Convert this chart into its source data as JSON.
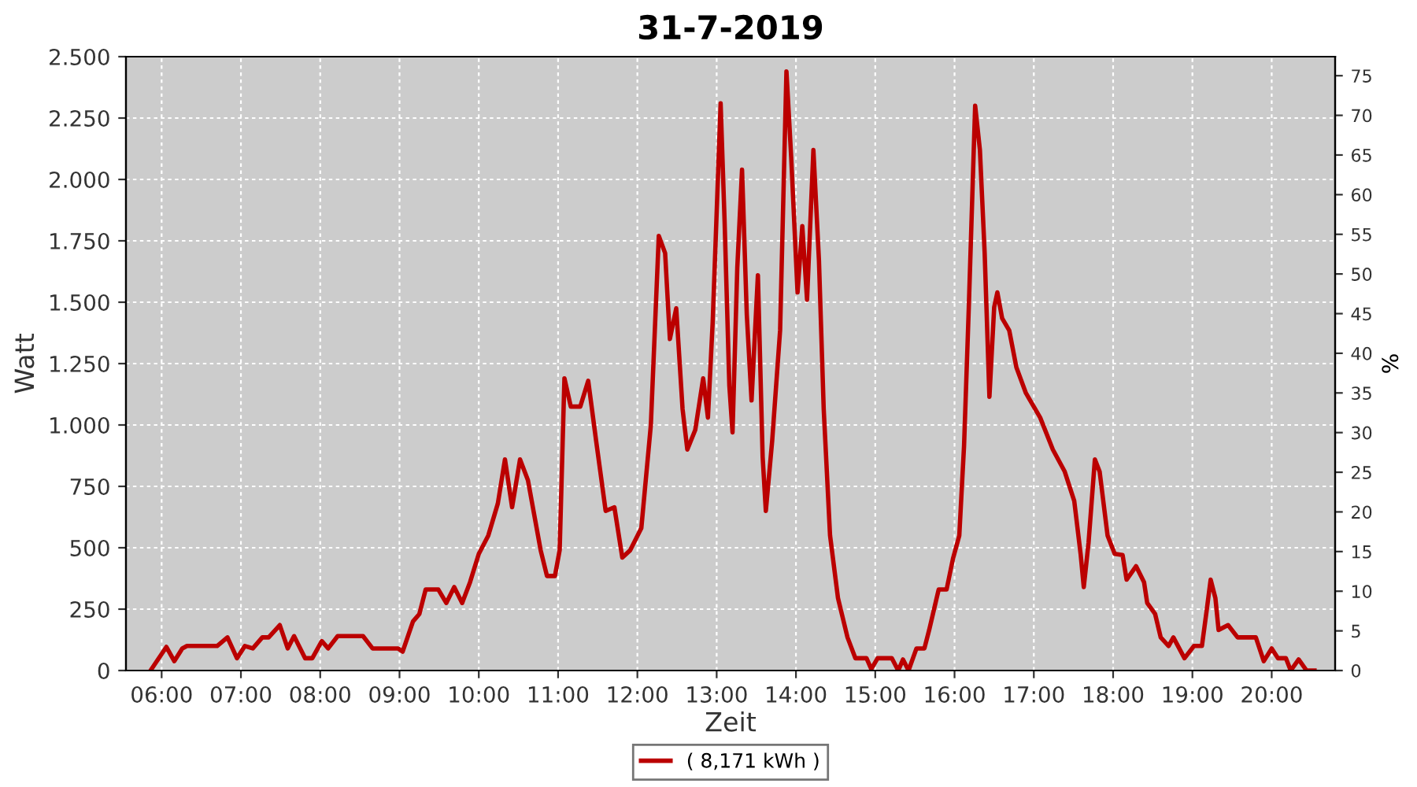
{
  "chart_data": {
    "type": "line",
    "title": "31-7-2019",
    "xlabel": "Zeit",
    "ylabel": "Watt",
    "y2label": "%",
    "x": [
      5.86,
      6.06,
      6.16,
      6.26,
      6.32,
      6.7,
      6.83,
      6.95,
      7.05,
      7.15,
      7.27,
      7.35,
      7.49,
      7.59,
      7.67,
      7.81,
      7.9,
      8.02,
      8.1,
      8.22,
      8.54,
      8.66,
      8.98,
      9.04,
      9.17,
      9.25,
      9.33,
      9.49,
      9.59,
      9.69,
      9.79,
      9.89,
      10.0,
      10.12,
      10.24,
      10.33,
      10.42,
      10.52,
      10.62,
      10.78,
      10.86,
      10.96,
      11.02,
      11.08,
      11.16,
      11.28,
      11.38,
      11.48,
      11.6,
      11.71,
      11.81,
      11.91,
      12.05,
      12.17,
      12.27,
      12.35,
      12.41,
      12.49,
      12.57,
      12.63,
      12.73,
      12.83,
      12.89,
      12.95,
      13.05,
      13.1,
      13.16,
      13.2,
      13.26,
      13.32,
      13.38,
      13.44,
      13.52,
      13.58,
      13.62,
      13.7,
      13.8,
      13.88,
      13.94,
      14.02,
      14.08,
      14.14,
      14.22,
      14.29,
      14.35,
      14.43,
      14.53,
      14.65,
      14.75,
      14.89,
      14.95,
      15.03,
      15.21,
      15.29,
      15.35,
      15.42,
      15.52,
      15.62,
      15.68,
      15.8,
      15.9,
      15.98,
      16.06,
      16.12,
      16.18,
      16.26,
      16.32,
      16.38,
      16.44,
      16.5,
      16.54,
      16.6,
      16.69,
      16.78,
      16.9,
      17.08,
      17.24,
      17.39,
      17.51,
      17.59,
      17.63,
      17.69,
      17.77,
      17.83,
      17.93,
      18.02,
      18.12,
      18.17,
      18.29,
      18.39,
      18.43,
      18.53,
      18.6,
      18.7,
      18.76,
      18.9,
      19.02,
      19.12,
      19.18,
      19.23,
      19.29,
      19.33,
      19.45,
      19.57,
      19.8,
      19.9,
      20.0,
      20.08,
      20.18,
      20.24,
      20.34,
      20.44,
      20.54
    ],
    "series": [
      {
        "name": "( 8,171 kWh )",
        "color": "#bb0000",
        "values": [
          0,
          96,
          38,
          90,
          100,
          100,
          135,
          50,
          100,
          90,
          135,
          135,
          185,
          90,
          140,
          50,
          50,
          120,
          90,
          140,
          140,
          90,
          90,
          77,
          200,
          230,
          330,
          330,
          275,
          340,
          275,
          360,
          475,
          550,
          680,
          860,
          665,
          860,
          775,
          490,
          385,
          385,
          490,
          1190,
          1075,
          1075,
          1180,
          935,
          650,
          665,
          460,
          490,
          580,
          1000,
          1770,
          1700,
          1350,
          1475,
          1065,
          900,
          980,
          1190,
          1030,
          1420,
          2310,
          1830,
          1160,
          970,
          1640,
          2040,
          1450,
          1100,
          1610,
          870,
          650,
          935,
          1385,
          2440,
          2090,
          1540,
          1810,
          1510,
          2120,
          1670,
          1065,
          550,
          295,
          135,
          50,
          50,
          6,
          50,
          50,
          0,
          45,
          0,
          90,
          90,
          165,
          330,
          330,
          455,
          550,
          915,
          1480,
          2300,
          2120,
          1700,
          1115,
          1480,
          1540,
          1435,
          1385,
          1235,
          1130,
          1030,
          900,
          810,
          690,
          475,
          340,
          520,
          860,
          810,
          550,
          475,
          470,
          370,
          425,
          360,
          275,
          230,
          135,
          100,
          135,
          50,
          100,
          100,
          245,
          370,
          295,
          165,
          185,
          135,
          135,
          38,
          90,
          50,
          50,
          0,
          45,
          0,
          0
        ]
      }
    ],
    "xlim": [
      5.55,
      20.8
    ],
    "xticks": [
      {
        "value": 6,
        "label": "06:00"
      },
      {
        "value": 7,
        "label": "07:00"
      },
      {
        "value": 8,
        "label": "08:00"
      },
      {
        "value": 9,
        "label": "09:00"
      },
      {
        "value": 10,
        "label": "10:00"
      },
      {
        "value": 11,
        "label": "11:00"
      },
      {
        "value": 12,
        "label": "12:00"
      },
      {
        "value": 13,
        "label": "13:00"
      },
      {
        "value": 14,
        "label": "14:00"
      },
      {
        "value": 15,
        "label": "15:00"
      },
      {
        "value": 16,
        "label": "16:00"
      },
      {
        "value": 17,
        "label": "17:00"
      },
      {
        "value": 18,
        "label": "18:00"
      },
      {
        "value": 19,
        "label": "19:00"
      },
      {
        "value": 20,
        "label": "20:00"
      }
    ],
    "ylim": [
      0,
      2500
    ],
    "yticks": [
      0,
      {
        "value": 250,
        "label": "250"
      },
      {
        "value": 500,
        "label": "500"
      },
      {
        "value": 750,
        "label": "750"
      },
      {
        "value": 1000,
        "label": "1.000"
      },
      {
        "value": 1250,
        "label": "1.250"
      },
      {
        "value": 1500,
        "label": "1.500"
      },
      {
        "value": 1750,
        "label": "1.750"
      },
      {
        "value": 2000,
        "label": "2.000"
      },
      {
        "value": 2250,
        "label": "2.250"
      },
      {
        "value": 2500,
        "label": "2.500"
      }
    ],
    "y2lim": [
      0,
      77.4
    ],
    "y2ticks": [
      0,
      5,
      10,
      15,
      20,
      25,
      30,
      35,
      40,
      45,
      50,
      55,
      60,
      65,
      70,
      75
    ],
    "grid": true,
    "legend": "bottom",
    "marker": "none",
    "line_style": "solid"
  }
}
